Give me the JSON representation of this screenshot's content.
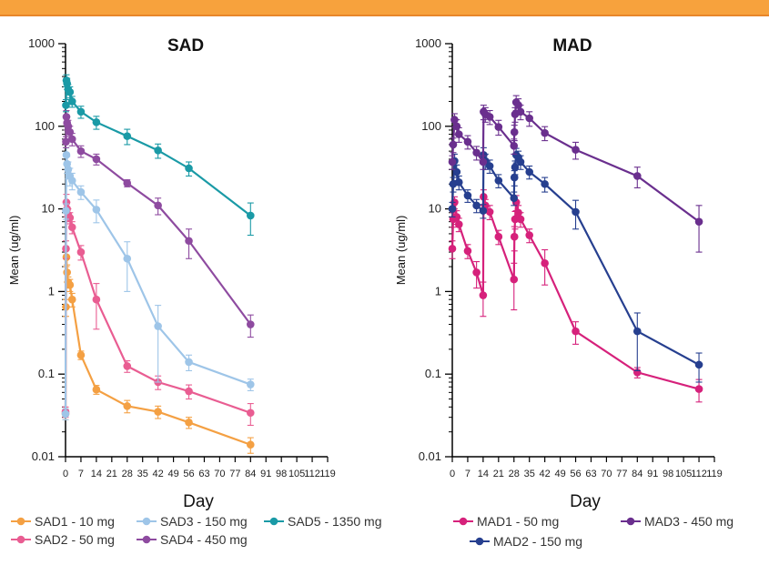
{
  "chart_data": [
    {
      "type": "line",
      "title": "SAD",
      "xlabel": "Day",
      "ylabel": "Mean (ug/ml)",
      "yscale": "log",
      "ylim": [
        0.01,
        1000
      ],
      "xlim": [
        0,
        119
      ],
      "xticks": [
        0,
        7,
        14,
        21,
        28,
        35,
        42,
        49,
        56,
        63,
        70,
        77,
        84,
        91,
        98,
        105,
        112,
        119
      ],
      "yticks": [
        0.01,
        0.1,
        1,
        10,
        100,
        1000
      ],
      "ytick_labels": [
        "0.01",
        "0.1",
        "1",
        "10",
        "100",
        "1000"
      ],
      "legend": "bottom",
      "series": [
        {
          "name": "SAD1 - 10 mg",
          "color": "#f4a043",
          "points": [
            [
              0,
              0.033
            ],
            [
              0.2,
              0.65
            ],
            [
              0.4,
              2.6
            ],
            [
              0.7,
              1.7
            ],
            [
              1.2,
              1.3
            ],
            [
              2,
              1.2
            ],
            [
              3,
              0.8
            ],
            [
              7,
              0.17
            ],
            [
              14,
              0.065
            ],
            [
              28,
              0.041
            ],
            [
              42,
              0.035
            ],
            [
              56,
              0.026
            ],
            [
              84,
              0.014
            ]
          ],
          "err": [
            0.005,
            0.15,
            0.6,
            0.4,
            0.2,
            0.2,
            0.15,
            0.02,
            0.008,
            0.007,
            0.006,
            0.004,
            0.003
          ]
        },
        {
          "name": "SAD2 - 50 mg",
          "color": "#e95d92",
          "points": [
            [
              0,
              0.035
            ],
            [
              0.2,
              3.3
            ],
            [
              0.4,
              12
            ],
            [
              0.7,
              10
            ],
            [
              1.2,
              8.5
            ],
            [
              2,
              7.8
            ],
            [
              3,
              6.0
            ],
            [
              7,
              3.0
            ],
            [
              14,
              0.8
            ],
            [
              28,
              0.125
            ],
            [
              42,
              0.08
            ],
            [
              56,
              0.062
            ],
            [
              84,
              0.034
            ]
          ],
          "err": [
            0.005,
            0.8,
            3,
            2,
            1.5,
            1.2,
            1.0,
            0.6,
            0.45,
            0.02,
            0.015,
            0.012,
            0.01
          ]
        },
        {
          "name": "SAD3 - 150 mg",
          "color": "#9ec5e8",
          "points": [
            [
              0,
              0.033
            ],
            [
              0.2,
              9.5
            ],
            [
              0.4,
              45
            ],
            [
              0.7,
              35
            ],
            [
              1.2,
              30
            ],
            [
              2,
              25
            ],
            [
              3,
              22
            ],
            [
              7,
              16
            ],
            [
              14,
              9.8
            ],
            [
              28,
              2.5
            ],
            [
              42,
              0.38
            ],
            [
              56,
              0.14
            ],
            [
              84,
              0.075
            ]
          ],
          "err": [
            0.005,
            2,
            10,
            8,
            7,
            6,
            5,
            3,
            3,
            1.5,
            0.3,
            0.03,
            0.012
          ]
        },
        {
          "name": "SAD4 - 450 mg",
          "color": "#8e4ba0",
          "points": [
            [
              0.2,
              65
            ],
            [
              0.4,
              130
            ],
            [
              0.7,
              110
            ],
            [
              1.2,
              100
            ],
            [
              2,
              85
            ],
            [
              3,
              70
            ],
            [
              7,
              50
            ],
            [
              14,
              40
            ],
            [
              28,
              20.5
            ],
            [
              42,
              11
            ],
            [
              56,
              4.1
            ],
            [
              84,
              0.4
            ]
          ],
          "err": [
            10,
            25,
            20,
            18,
            15,
            12,
            8,
            6,
            2,
            2.5,
            1.6,
            0.12
          ]
        },
        {
          "name": "SAD5 - 1350 mg",
          "color": "#1a9aa6",
          "points": [
            [
              0.2,
              180
            ],
            [
              0.4,
              360
            ],
            [
              0.7,
              330
            ],
            [
              1.2,
              280
            ],
            [
              2,
              260
            ],
            [
              3,
              200
            ],
            [
              7,
              150
            ],
            [
              14,
              112
            ],
            [
              28,
              76
            ],
            [
              42,
              51
            ],
            [
              56,
              31
            ],
            [
              84,
              8.3
            ]
          ],
          "err": [
            30,
            60,
            50,
            40,
            40,
            30,
            25,
            20,
            16,
            10,
            6,
            3.5
          ]
        }
      ]
    },
    {
      "type": "line",
      "title": "MAD",
      "xlabel": "Day",
      "ylabel": "Mean (ug/ml)",
      "yscale": "log",
      "ylim": [
        0.01,
        1000
      ],
      "xlim": [
        0,
        119
      ],
      "xticks": [
        0,
        7,
        14,
        21,
        28,
        35,
        42,
        49,
        56,
        63,
        70,
        77,
        84,
        91,
        98,
        105,
        112,
        119
      ],
      "yticks": [
        0.01,
        0.1,
        1,
        10,
        100,
        1000
      ],
      "ytick_labels": [
        "0.01",
        "0.1",
        "1",
        "10",
        "100",
        "1000"
      ],
      "legend": "bottom",
      "series": [
        {
          "name": "MAD1 - 50 mg",
          "color": "#d6217b",
          "points": [
            [
              0,
              3.3
            ],
            [
              0.4,
              7.5
            ],
            [
              1,
              12
            ],
            [
              2,
              8
            ],
            [
              3,
              6.5
            ],
            [
              7,
              3.1
            ],
            [
              11,
              1.7
            ],
            [
              14,
              0.9
            ],
            [
              14.2,
              14
            ],
            [
              15,
              11
            ],
            [
              17,
              9.2
            ],
            [
              21,
              4.6
            ],
            [
              28,
              1.4
            ],
            [
              28.2,
              4.6
            ],
            [
              28.5,
              7.5
            ],
            [
              29,
              12
            ],
            [
              30,
              9
            ],
            [
              31,
              7.5
            ],
            [
              35,
              4.8
            ],
            [
              42,
              2.2
            ],
            [
              56,
              0.33
            ],
            [
              84,
              0.105
            ],
            [
              112,
              0.066
            ]
          ],
          "err": [
            0.8,
            1.5,
            2,
            1.5,
            1.2,
            0.6,
            0.6,
            0.4,
            3,
            2,
            1.8,
            0.9,
            0.8,
            1.5,
            1.8,
            2.5,
            2,
            1.5,
            0.9,
            1.0,
            0.1,
            0.015,
            0.02
          ]
        },
        {
          "name": "MAD2 - 150 mg",
          "color": "#263f8f",
          "points": [
            [
              0,
              10
            ],
            [
              0.4,
              20
            ],
            [
              1,
              38
            ],
            [
              2,
              28
            ],
            [
              3,
              21
            ],
            [
              7,
              14.5
            ],
            [
              11,
              11
            ],
            [
              14,
              9.5
            ],
            [
              14.2,
              45
            ],
            [
              15,
              38
            ],
            [
              17,
              33
            ],
            [
              21,
              22
            ],
            [
              28,
              13.5
            ],
            [
              28.2,
              24
            ],
            [
              28.5,
              32
            ],
            [
              29,
              45
            ],
            [
              30,
              42
            ],
            [
              31,
              37
            ],
            [
              35,
              28
            ],
            [
              42,
              20
            ],
            [
              56,
              9.2
            ],
            [
              84,
              0.33
            ],
            [
              112,
              0.13
            ]
          ],
          "err": [
            2,
            4,
            8,
            6,
            4,
            2.5,
            2,
            1.8,
            10,
            8,
            6,
            4,
            2.5,
            5,
            6,
            9,
            8,
            7,
            5,
            4,
            3.5,
            0.22,
            0.05
          ]
        },
        {
          "name": "MAD3 - 450 mg",
          "color": "#6a2f8e",
          "points": [
            [
              0,
              37
            ],
            [
              0.4,
              60
            ],
            [
              1,
              120
            ],
            [
              2,
              100
            ],
            [
              3,
              80
            ],
            [
              7,
              65
            ],
            [
              11,
              48
            ],
            [
              14,
              37
            ],
            [
              14.2,
              150
            ],
            [
              15,
              140
            ],
            [
              17,
              130
            ],
            [
              21,
              98
            ],
            [
              28,
              58
            ],
            [
              28.2,
              85
            ],
            [
              28.5,
              140
            ],
            [
              29,
              195
            ],
            [
              30,
              180
            ],
            [
              31,
              150
            ],
            [
              35,
              125
            ],
            [
              42,
              83
            ],
            [
              56,
              52
            ],
            [
              84,
              25
            ],
            [
              112,
              7
            ]
          ],
          "err": [
            7,
            12,
            22,
            20,
            16,
            12,
            9,
            7,
            30,
            28,
            25,
            20,
            12,
            18,
            28,
            40,
            35,
            30,
            25,
            16,
            12,
            7,
            4
          ]
        }
      ]
    }
  ]
}
